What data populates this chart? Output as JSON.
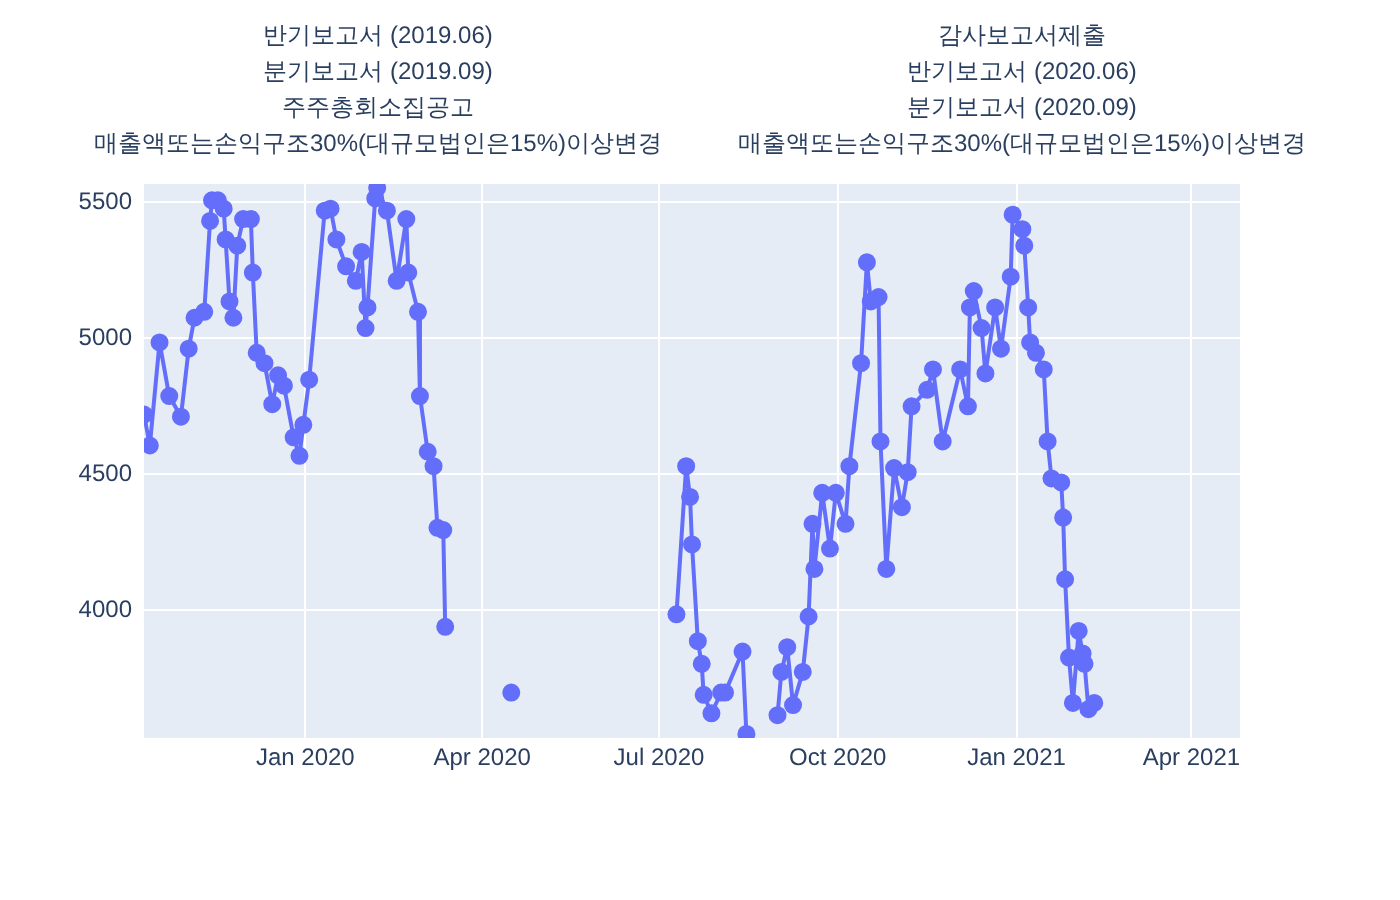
{
  "chart_data": {
    "type": "line",
    "marker": "circle",
    "grid": true,
    "x": [
      "2019-10-10",
      "2019-10-13",
      "2019-10-18",
      "2019-10-23",
      "2019-10-29",
      "2019-11-02",
      "2019-11-05",
      "2019-11-10",
      "2019-11-13",
      "2019-11-14",
      "2019-11-17",
      "2019-11-20",
      "2019-11-21",
      "2019-11-23",
      "2019-11-25",
      "2019-11-27",
      "2019-11-30",
      "2019-12-04",
      "2019-12-05",
      "2019-12-07",
      "2019-12-11",
      "2019-12-15",
      "2019-12-18",
      "2019-12-21",
      "2019-12-26",
      "2019-12-29",
      "2019-12-31",
      "2020-01-03",
      "2020-01-11",
      "2020-01-14",
      "2020-01-17",
      "2020-01-22",
      "2020-01-27",
      "2020-01-30",
      "2020-02-01",
      "2020-02-02",
      "2020-02-06",
      "2020-02-07",
      "2020-02-12",
      "2020-02-17",
      "2020-02-22",
      "2020-02-23",
      "2020-02-28",
      "2020-02-29",
      "2020-03-04",
      "2020-03-07",
      "2020-03-09",
      "2020-03-12",
      "2020-03-13",
      "2020-03-20",
      "2020-04-16",
      "2020-04-20",
      "2020-07-10",
      "2020-07-15",
      "2020-07-17",
      "2020-07-18",
      "2020-07-21",
      "2020-07-23",
      "2020-07-24",
      "2020-07-28",
      "2020-08-02",
      "2020-08-04",
      "2020-08-13",
      "2020-08-15",
      "2020-08-25",
      "2020-08-31",
      "2020-09-02",
      "2020-09-05",
      "2020-09-08",
      "2020-09-13",
      "2020-09-16",
      "2020-09-18",
      "2020-09-19",
      "2020-09-23",
      "2020-09-27",
      "2020-09-30",
      "2020-10-05",
      "2020-10-07",
      "2020-10-13",
      "2020-10-16",
      "2020-10-18",
      "2020-10-22",
      "2020-10-23",
      "2020-10-26",
      "2020-10-30",
      "2020-11-03",
      "2020-11-06",
      "2020-11-08",
      "2020-11-16",
      "2020-11-19",
      "2020-11-24",
      "2020-12-03",
      "2020-12-07",
      "2020-12-08",
      "2020-12-10",
      "2020-12-14",
      "2020-12-16",
      "2020-12-21",
      "2020-12-24",
      "2020-12-29",
      "2020-12-30",
      "2021-01-04",
      "2021-01-05",
      "2021-01-07",
      "2021-01-08",
      "2021-01-11",
      "2021-01-15",
      "2021-01-17",
      "2021-01-19",
      "2021-01-24",
      "2021-01-25",
      "2021-01-26",
      "2021-01-28",
      "2021-01-30",
      "2021-02-02",
      "2021-02-04",
      "2021-02-05",
      "2021-02-07",
      "2021-02-10"
    ],
    "series": [
      {
        "color": "#636efa",
        "values": [
          4720,
          4606,
          4985,
          4788,
          4712,
          4962,
          5076,
          5098,
          5432,
          5508,
          5508,
          5477,
          5364,
          5136,
          5076,
          5341,
          5439,
          5439,
          5242,
          4947,
          4909,
          4758,
          4864,
          4826,
          4636,
          4568,
          4682,
          4848,
          5470,
          5477,
          5364,
          5265,
          5212,
          5318,
          5038,
          5114,
          5515,
          5553,
          5470,
          5212,
          5439,
          5242,
          5098,
          4788,
          4583,
          4530,
          4303,
          4295,
          3939,
          null,
          3697,
          null,
          3985,
          4530,
          4417,
          4242,
          3886,
          3803,
          3689,
          3621,
          3697,
          3697,
          3848,
          3545,
          null,
          3614,
          3773,
          3864,
          3651,
          3773,
          3977,
          4318,
          4152,
          4432,
          4227,
          4432,
          4318,
          4530,
          4909,
          5280,
          5136,
          5152,
          4621,
          4152,
          4523,
          4379,
          4508,
          4750,
          4811,
          4886,
          4621,
          4886,
          4750,
          5114,
          5174,
          5038,
          4871,
          5114,
          4962,
          5227,
          5455,
          5402,
          5341,
          5114,
          4985,
          4947,
          4886,
          4621,
          4485,
          4470,
          4341,
          4114,
          3826,
          3659,
          3924,
          3841,
          3803,
          3636,
          3659
        ]
      }
    ],
    "xlim": [
      "2019-10-10",
      "2021-04-26"
    ],
    "xticks": [
      {
        "value": "2020-01-01",
        "label": "Jan 2020"
      },
      {
        "value": "2020-04-01",
        "label": "Apr 2020"
      },
      {
        "value": "2020-07-01",
        "label": "Jul 2020"
      },
      {
        "value": "2020-10-01",
        "label": "Oct 2020"
      },
      {
        "value": "2021-01-01",
        "label": "Jan 2021"
      },
      {
        "value": "2021-04-01",
        "label": "Apr 2021"
      }
    ],
    "ylim": [
      3530,
      5568
    ],
    "yticks": [
      4000,
      4500,
      5000,
      5500
    ],
    "annotations": [
      "반기보고서 (2019.06)",
      "분기보고서 (2019.09)",
      "주주총회소집공고",
      "매출액또는손익구조30%(대규모법인은15%)이상변경",
      "감사보고서제출",
      "반기보고서 (2020.06)",
      "분기보고서 (2020.09)",
      "매출액또는손익구조30%(대규모법인은15%)이상변경"
    ]
  }
}
